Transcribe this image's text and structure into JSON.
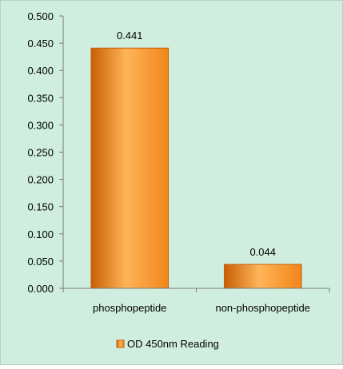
{
  "chart_data": {
    "type": "bar",
    "categories": [
      "phosphopeptide",
      "non-phosphopeptide"
    ],
    "series": [
      {
        "name": "OD 450nm Reading",
        "values": [
          0.441,
          0.044
        ]
      }
    ],
    "data_labels": [
      "0.441",
      "0.044"
    ],
    "ylim": [
      0,
      0.5
    ],
    "yticks": [
      0.0,
      0.05,
      0.1,
      0.15,
      0.2,
      0.25,
      0.3,
      0.35,
      0.4,
      0.45,
      0.5
    ],
    "ytick_labels": [
      "0.000",
      "0.050",
      "0.100",
      "0.150",
      "0.200",
      "0.250",
      "0.300",
      "0.350",
      "0.400",
      "0.450",
      "0.500"
    ],
    "grid": false,
    "legend_position": "bottom",
    "colors": {
      "background": "#cfeee0",
      "bar": "#f0861a",
      "bar_dark": "#c85f05",
      "bar_light": "#ffb458",
      "axis": "#7a7a7a"
    }
  }
}
